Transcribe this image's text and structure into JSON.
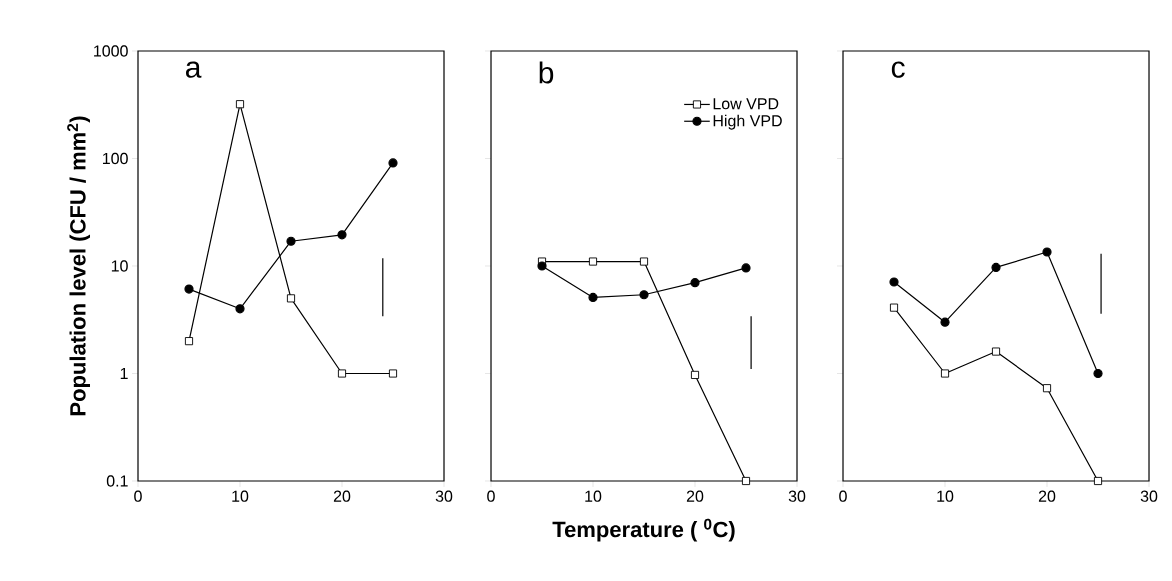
{
  "chart_data": [
    {
      "type": "line",
      "title": "a",
      "ylabel": "Population level (CFU / mm$^{2}$)",
      "log": "y",
      "xlim": [
        0,
        30
      ],
      "xticks": [
        0,
        10,
        20,
        30
      ],
      "ylim": [
        0.1,
        1000
      ],
      "yticks": [
        0.1,
        1,
        10,
        100,
        1000
      ],
      "legend": false,
      "line_style": "solid",
      "series": [
        {
          "color": "#000000",
          "marker": "square",
          "x": [
            5,
            10,
            15,
            20,
            25
          ],
          "values": [
            2.0,
            320,
            5.0,
            1.0,
            1.0
          ]
        },
        {
          "color": "#000000",
          "marker": "circle",
          "x": [
            5,
            10,
            15,
            20,
            25
          ],
          "values": [
            6.1,
            4.0,
            17,
            19.5,
            91
          ]
        },
        {
          "color": "#000000",
          "marker": "none",
          "x": [
            24,
            24
          ],
          "values": [
            3.4,
            11.8
          ]
        }
      ]
    },
    {
      "type": "line",
      "title": "b",
      "xlabel": "Temperature  ( $^{0}$C)",
      "log": "y",
      "xlim": [
        0,
        30
      ],
      "xticks": [
        0,
        10,
        20,
        30
      ],
      "ylim": [
        0.1,
        1000
      ],
      "yticks": [
        0.1,
        1,
        10,
        100,
        1000
      ],
      "tick_labels": "x",
      "legend": "top right",
      "line_style": "solid",
      "series": [
        {
          "name": "Low VPD",
          "color": "#000000",
          "marker": "square",
          "x": [
            5,
            10,
            15,
            20,
            25
          ],
          "values": [
            11,
            11,
            11,
            0.97,
            0.1
          ]
        },
        {
          "name": "High VPD",
          "color": "#000000",
          "marker": "circle",
          "x": [
            5,
            10,
            15,
            20,
            25
          ],
          "values": [
            10,
            5.1,
            5.4,
            7.0,
            9.6
          ]
        },
        {
          "color": "#000000",
          "marker": "none",
          "x": [
            25.5,
            25.5
          ],
          "values": [
            1.1,
            3.4
          ]
        }
      ]
    },
    {
      "type": "line",
      "title": "c",
      "log": "y",
      "xlim": [
        0,
        30
      ],
      "xticks": [
        0,
        10,
        20,
        30
      ],
      "ylim": [
        0.1,
        1000
      ],
      "yticks": [
        0.1,
        1,
        10,
        100,
        1000
      ],
      "tick_labels": "x",
      "legend": false,
      "line_style": "solid",
      "series": [
        {
          "color": "#000000",
          "marker": "square",
          "x": [
            5,
            10,
            15,
            20,
            25
          ],
          "values": [
            4.1,
            1.0,
            1.6,
            0.73,
            0.1
          ]
        },
        {
          "color": "#000000",
          "marker": "circle",
          "x": [
            5,
            10,
            15,
            20,
            25
          ],
          "values": [
            7.1,
            3.0,
            9.7,
            13.5,
            1.0
          ]
        },
        {
          "color": "#000000",
          "marker": "none",
          "x": [
            25.3,
            25.3
          ],
          "values": [
            3.6,
            13
          ]
        }
      ]
    }
  ]
}
